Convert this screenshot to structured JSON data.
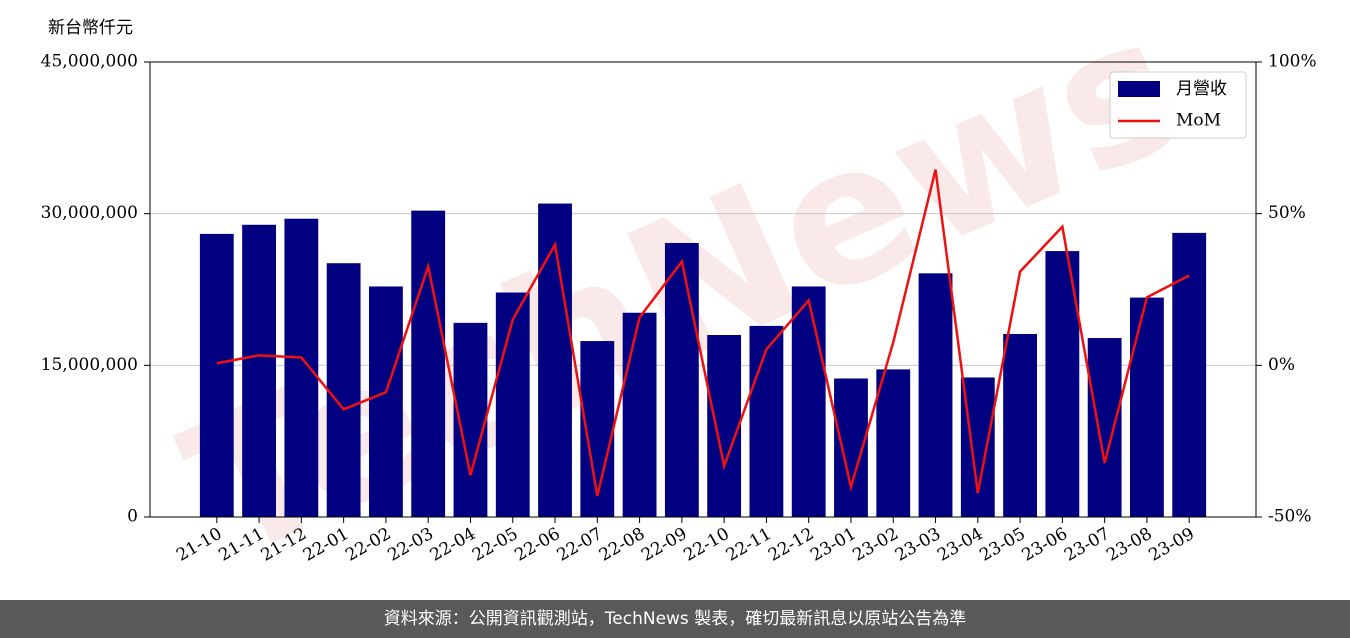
{
  "chart_data": {
    "type": "bar-line",
    "ylabel": "新台幣仟元",
    "watermark": "TechNews",
    "categories": [
      "21-10",
      "21-11",
      "21-12",
      "22-01",
      "22-02",
      "22-03",
      "22-04",
      "22-05",
      "22-06",
      "22-07",
      "22-08",
      "22-09",
      "22-10",
      "22-11",
      "22-12",
      "23-01",
      "23-02",
      "23-03",
      "23-04",
      "23-05",
      "23-06",
      "23-07",
      "23-08",
      "23-09"
    ],
    "series": [
      {
        "name": "月營收",
        "type": "bar",
        "color": "#000080",
        "values": [
          28000000,
          28900000,
          29500000,
          25100000,
          22800000,
          30300000,
          19200000,
          22200000,
          31000000,
          17400000,
          20200000,
          27100000,
          18000000,
          18900000,
          22800000,
          13700000,
          14600000,
          24100000,
          13800000,
          18100000,
          26300000,
          17700000,
          21700000,
          28100000
        ]
      },
      {
        "name": "MoM",
        "type": "line",
        "axis": "y2",
        "color": "#ee1111",
        "values": [
          0.7,
          3.3,
          2.6,
          -14.5,
          -8.9,
          32.6,
          -36.2,
          15.1,
          39.8,
          -43.1,
          15.8,
          34.2,
          -33.2,
          5.3,
          21.4,
          -40.1,
          7.6,
          64.5,
          -42.1,
          30.9,
          45.7,
          -32.2,
          22.4,
          29.6
        ]
      }
    ],
    "ylim": [
      0,
      45000000
    ],
    "yticks": [
      {
        "value": 0,
        "label": "0"
      },
      {
        "value": 15000000,
        "label": "15,000,000"
      },
      {
        "value": 30000000,
        "label": "30,000,000"
      },
      {
        "value": 45000000,
        "label": "45,000,000"
      }
    ],
    "y2lim": [
      -50,
      100
    ],
    "y2ticks": [
      {
        "value": -50,
        "label": "-50%"
      },
      {
        "value": 0,
        "label": "0%"
      },
      {
        "value": 50,
        "label": "50%"
      },
      {
        "value": 100,
        "label": "100%"
      }
    ],
    "grid": true,
    "legend": "upper right"
  },
  "footer": "資料來源：公開資訊觀測站，TechNews 製表，確切最新訊息以原站公告為準"
}
